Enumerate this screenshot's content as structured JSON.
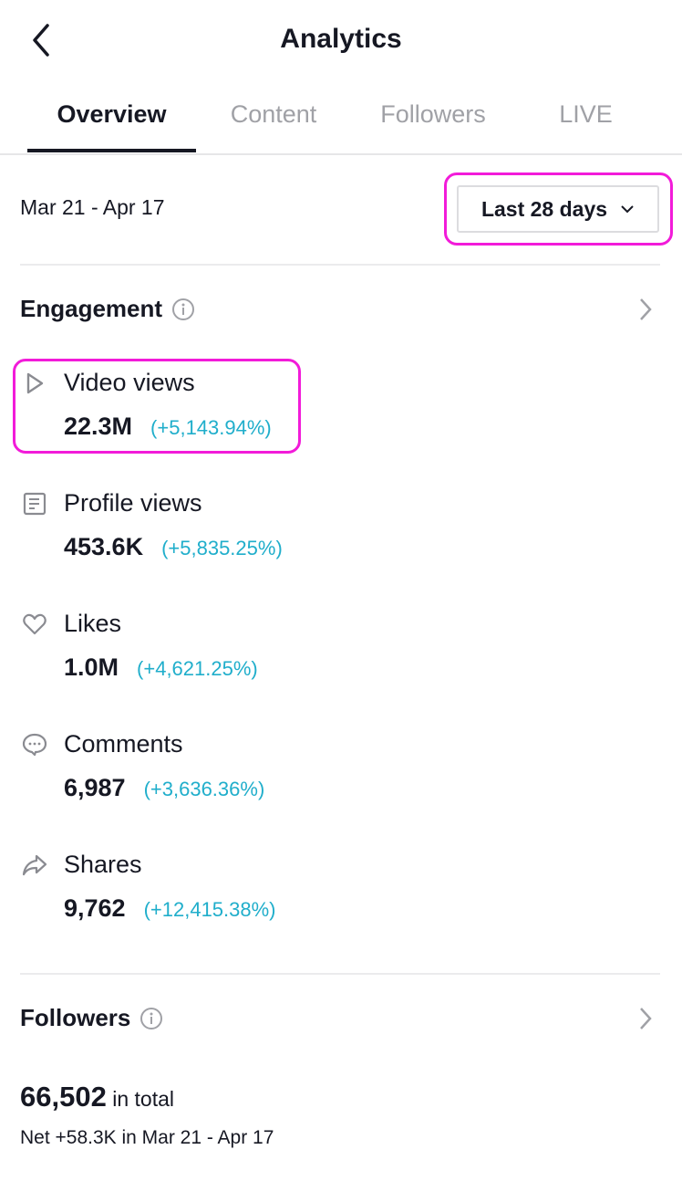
{
  "header": {
    "title": "Analytics",
    "back_icon": "chevron-left-icon"
  },
  "tabs": [
    {
      "label": "Overview",
      "active": true
    },
    {
      "label": "Content"
    },
    {
      "label": "Followers"
    },
    {
      "label": "LIVE"
    }
  ],
  "date_range": "Mar 21 - Apr 17",
  "period_select": {
    "selected": "Last 28 days"
  },
  "engagement": {
    "title": "Engagement",
    "metrics": [
      {
        "label": "Video views",
        "value": "22.3M",
        "change": "(+5,143.94%)",
        "icon": "play-icon"
      },
      {
        "label": "Profile views",
        "value": "453.6K",
        "change": "(+5,835.25%)",
        "icon": "profile-doc-icon"
      },
      {
        "label": "Likes",
        "value": "1.0M",
        "change": "(+4,621.25%)",
        "icon": "heart-icon"
      },
      {
        "label": "Comments",
        "value": "6,987",
        "change": "(+3,636.36%)",
        "icon": "comment-icon"
      },
      {
        "label": "Shares",
        "value": "9,762",
        "change": "(+12,415.38%)",
        "icon": "share-icon"
      }
    ]
  },
  "followers": {
    "title": "Followers",
    "total": "66,502",
    "total_suffix": "in total",
    "net": "Net +58.3K in Mar 21 - Apr 17"
  },
  "colors": {
    "change": "#20aecb",
    "highlight": "#f21bd9",
    "text": "#161823"
  }
}
